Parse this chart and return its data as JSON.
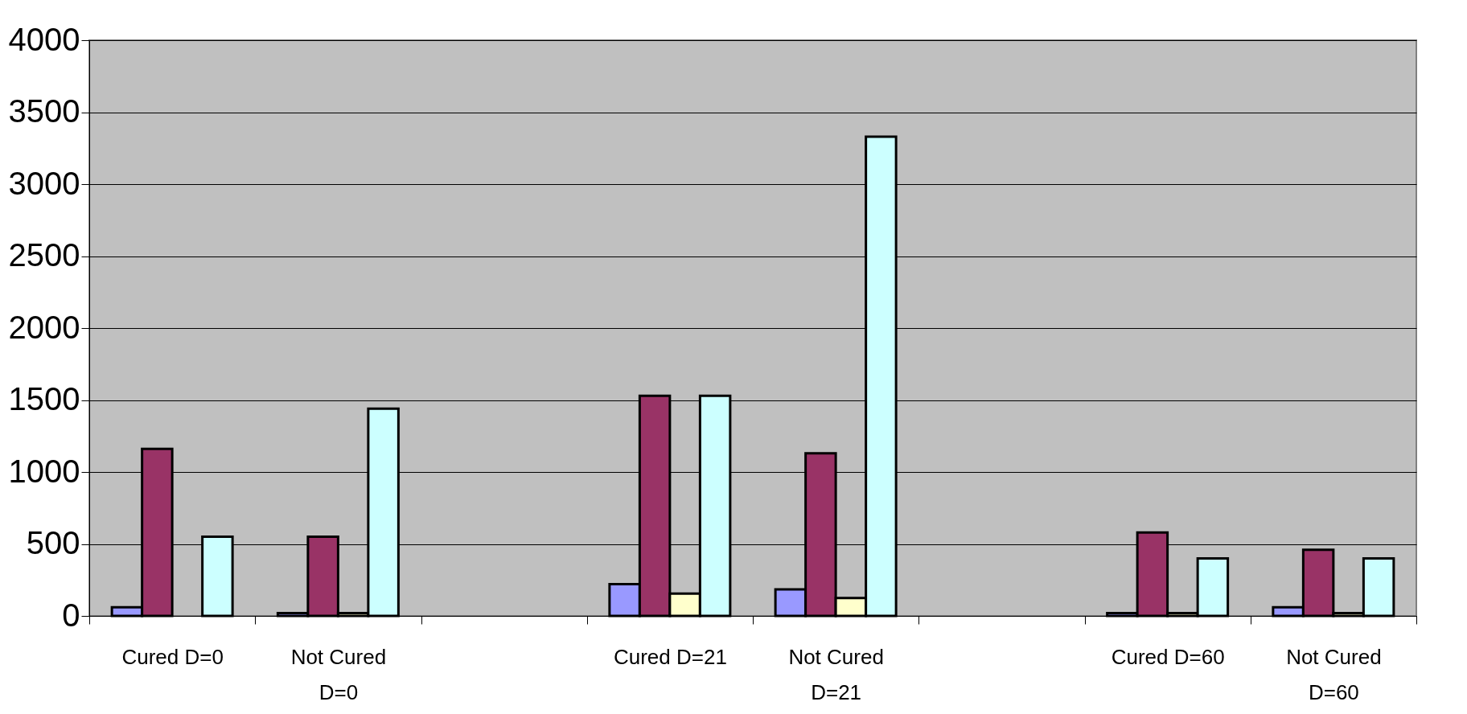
{
  "chart_data": {
    "type": "bar",
    "categories": [
      "Cured  D=0",
      "Not Cured D=0",
      null,
      "Cured D=21",
      "Not Cured D=21",
      null,
      "Cured D=60",
      "Not Cured D=60"
    ],
    "series": [
      {
        "color": "#9999ff",
        "values": [
          60,
          20,
          null,
          220,
          185,
          null,
          20,
          60
        ]
      },
      {
        "color": "#993366",
        "values": [
          1160,
          550,
          null,
          1530,
          1130,
          null,
          580,
          460
        ]
      },
      {
        "color": "#ffffcc",
        "values": [
          null,
          20,
          null,
          155,
          125,
          null,
          20,
          20
        ]
      },
      {
        "color": "#ccffff",
        "values": [
          550,
          1440,
          null,
          1530,
          3330,
          null,
          400,
          400
        ]
      }
    ],
    "ylim": [
      0,
      4000
    ],
    "yticks": [
      0,
      500,
      1000,
      1500,
      2000,
      2500,
      3000,
      3500,
      4000
    ],
    "grid": "y",
    "legend": false
  }
}
